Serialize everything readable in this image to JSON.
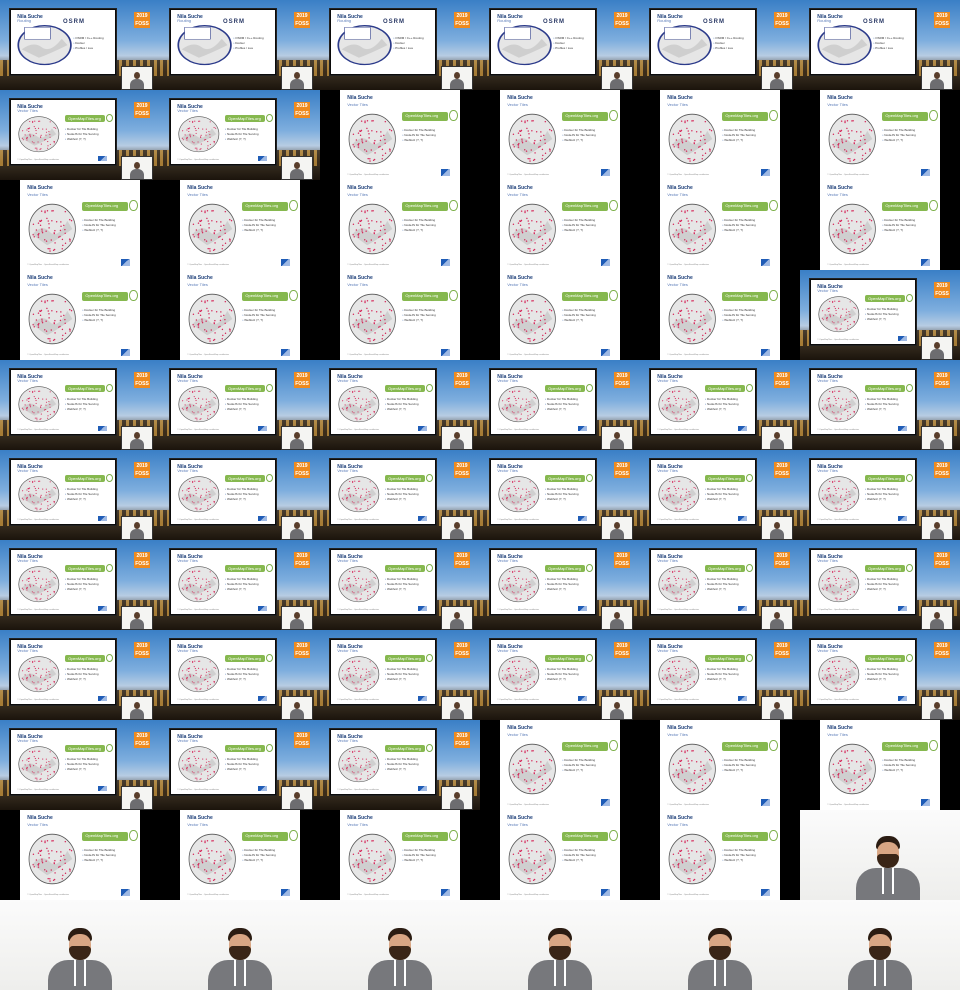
{
  "grid": {
    "columns": 6,
    "rows": 11
  },
  "slide": {
    "title": "Nila Suche",
    "subtitle": "Vector Tiles",
    "badge": "OpenMapTiles.org",
    "bullets": [
      "Docker für Tile Building",
      "NodeJS für Tile Serving",
      "Webfetz (?, ?)"
    ],
    "footer": "© OpenMapTiles · OpenStreetMap contributors"
  },
  "osm_slide": {
    "title": "Nila Suche",
    "subtitle": "Routing",
    "logo_text": "OSRM",
    "bullets": [
      "OSRM / C++ Routing",
      "Docker",
      "Profiles / Lua"
    ]
  },
  "stage": {
    "logo_text": "2019 FOSS"
  },
  "colors": {
    "sky": "#3a7fc6",
    "badge": "#86b84f",
    "title": "#1c3e78",
    "map_dots": "#d6285a",
    "logo": "#ef8a1e"
  },
  "frames": [
    "stage-osm",
    "stage-osm",
    "stage-osm",
    "stage-osm",
    "stage-osm",
    "stage-osm",
    "stage",
    "stage",
    "slide",
    "slide",
    "slide",
    "slide",
    "slide",
    "slide",
    "slide",
    "slide",
    "slide",
    "slide",
    "slide",
    "slide",
    "slide",
    "slide",
    "slide",
    "stage",
    "stage",
    "stage",
    "stage",
    "stage",
    "stage",
    "stage",
    "stage",
    "stage",
    "stage",
    "stage",
    "stage",
    "stage",
    "stage",
    "stage",
    "stage",
    "stage",
    "stage",
    "stage",
    "stage",
    "stage",
    "stage",
    "stage",
    "stage",
    "stage",
    "stage",
    "stage",
    "stage",
    "slide",
    "slide",
    "slide",
    "slide",
    "slide",
    "slide",
    "slide",
    "slide",
    "speaker-partial",
    "speaker",
    "speaker",
    "speaker",
    "speaker",
    "speaker",
    "speaker"
  ]
}
